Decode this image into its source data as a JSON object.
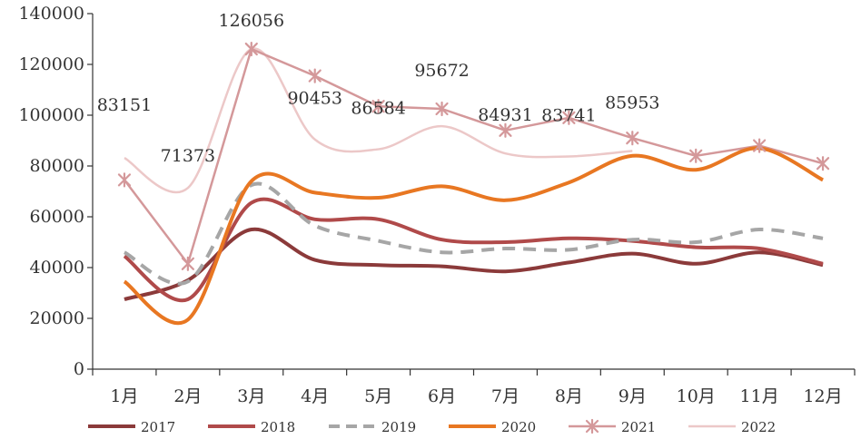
{
  "chart_data": {
    "type": "line",
    "categories": [
      "1月",
      "2月",
      "3月",
      "4月",
      "5月",
      "6月",
      "7月",
      "8月",
      "9月",
      "10月",
      "11月",
      "12月"
    ],
    "ylim": [
      0,
      140000
    ],
    "yticks": [
      0,
      20000,
      40000,
      60000,
      80000,
      100000,
      120000,
      140000
    ],
    "grid": false,
    "legend_position": "bottom",
    "series": [
      {
        "name": "2017",
        "color": "#8b3a3a",
        "style": "solid",
        "marker": "none",
        "values": [
          27500,
          35000,
          55000,
          43000,
          41000,
          40500,
          38500,
          42000,
          45500,
          41500,
          46000,
          41000
        ]
      },
      {
        "name": "2018",
        "color": "#b04a4a",
        "style": "solid",
        "marker": "none",
        "values": [
          44500,
          27500,
          65500,
          59000,
          59000,
          51000,
          50000,
          51500,
          50500,
          48000,
          47500,
          41500
        ]
      },
      {
        "name": "2019",
        "color": "#a6a6a6",
        "style": "dashed",
        "marker": "none",
        "values": [
          46000,
          34500,
          72500,
          56500,
          50500,
          46000,
          47500,
          47000,
          51000,
          50000,
          55000,
          51500
        ]
      },
      {
        "name": "2020",
        "color": "#e87722",
        "style": "solid",
        "marker": "none",
        "values": [
          34500,
          19500,
          74000,
          69500,
          67500,
          72000,
          66500,
          73500,
          84000,
          78500,
          87000,
          74500
        ]
      },
      {
        "name": "2021",
        "color": "#d4989a",
        "style": "solid",
        "marker": "star",
        "values": [
          74500,
          41500,
          126056,
          115500,
          103500,
          102500,
          94000,
          99000,
          91000,
          84000,
          88000,
          81000
        ]
      },
      {
        "name": "2022",
        "color": "#ecc8c8",
        "style": "solid",
        "marker": "none",
        "values": [
          83151,
          71373,
          126056,
          90453,
          86584,
          95672,
          84931,
          83741,
          85953,
          null,
          null,
          null
        ]
      }
    ],
    "annotations": [
      {
        "series": "2022",
        "index": 0,
        "label": "83151"
      },
      {
        "series": "2022",
        "index": 1,
        "label": "71373"
      },
      {
        "series": "2022",
        "index": 2,
        "label": "126056"
      },
      {
        "series": "2022",
        "index": 3,
        "label": "90453"
      },
      {
        "series": "2022",
        "index": 4,
        "label": "86584"
      },
      {
        "series": "2022",
        "index": 5,
        "label": "95672"
      },
      {
        "series": "2022",
        "index": 6,
        "label": "84931"
      },
      {
        "series": "2022",
        "index": 7,
        "label": "83741"
      },
      {
        "series": "2022",
        "index": 8,
        "label": "85953"
      }
    ]
  }
}
